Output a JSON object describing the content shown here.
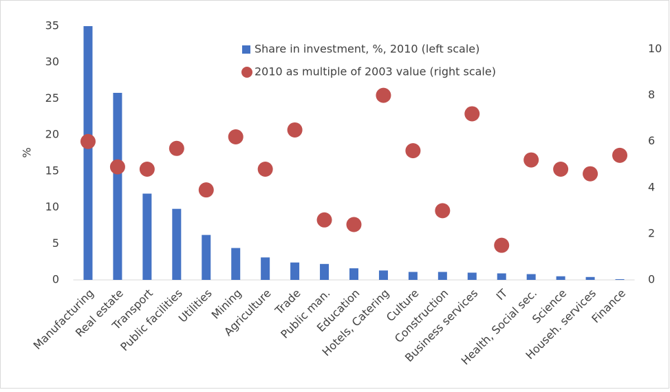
{
  "chart_data": {
    "type": "bar-dot",
    "y_label": "%",
    "categories": [
      "Manufacturing",
      "Real estate",
      "Transport",
      "Public facilities",
      "Utilities",
      "Mining",
      "Agriculture",
      "Trade",
      "Public man.",
      "Education",
      "Hotels, Catering",
      "Culture",
      "Construction",
      "Business services",
      "IT",
      "Health, Social sec.",
      "Science",
      "Househ. services",
      "Finance"
    ],
    "series": [
      {
        "name": "Share in investment, %, 2010 (left scale)",
        "color": "#4472c4",
        "axis": "y",
        "values": [
          35,
          25.8,
          11.9,
          9.8,
          6.2,
          4.4,
          3.1,
          2.4,
          2.2,
          1.6,
          1.3,
          1.1,
          1.1,
          1.0,
          0.9,
          0.8,
          0.5,
          0.4,
          0.1
        ]
      },
      {
        "name": "2010 as multiple of 2003 value (right scale)",
        "color": "#c0504d",
        "axis": "y2",
        "values": [
          6.0,
          4.9,
          4.8,
          5.7,
          3.9,
          6.2,
          4.8,
          6.5,
          2.6,
          2.4,
          8.0,
          5.6,
          3.0,
          7.2,
          1.5,
          5.2,
          4.8,
          4.6,
          5.4
        ]
      }
    ],
    "ylim": [
      0,
      35
    ],
    "yticks": [
      0,
      5,
      10,
      15,
      20,
      25,
      30,
      35
    ],
    "y2lim": [
      0,
      11
    ],
    "y2ticks": [
      0,
      2,
      4,
      6,
      8,
      10
    ],
    "grid": false
  }
}
